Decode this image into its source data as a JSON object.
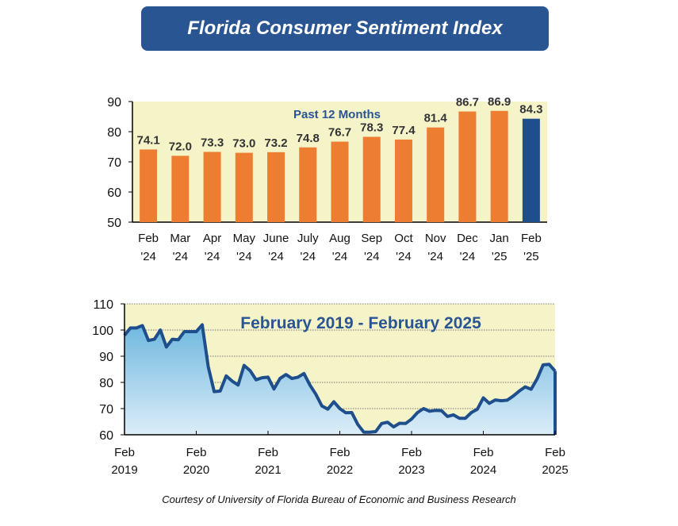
{
  "title": "Florida Consumer Sentiment Index",
  "credit": "Courtesy of University of Florida Bureau of Economic and Business Research",
  "colors": {
    "banner": "#2A5593",
    "bar": "#ED7D31",
    "bar_highlight": "#1F4E8C",
    "plot_bg": "#F5F3C8",
    "line": "#1F4E8C"
  },
  "chart_data": [
    {
      "type": "bar",
      "title": "Past 12 Months",
      "categories": [
        [
          "Feb",
          "'24"
        ],
        [
          "Mar",
          "'24"
        ],
        [
          "Apr",
          "'24"
        ],
        [
          "May",
          "'24"
        ],
        [
          "June",
          "'24"
        ],
        [
          "July",
          "'24"
        ],
        [
          "Aug",
          "'24"
        ],
        [
          "Sep",
          "'24"
        ],
        [
          "Oct",
          "'24"
        ],
        [
          "Nov",
          "'24"
        ],
        [
          "Dec",
          "'24"
        ],
        [
          "Jan",
          "'25"
        ],
        [
          "Feb",
          "'25"
        ]
      ],
      "values": [
        74.1,
        72.0,
        73.3,
        73.0,
        73.2,
        74.8,
        76.7,
        78.3,
        77.4,
        81.4,
        86.7,
        86.9,
        84.3
      ],
      "labels": [
        "74.1",
        "72.0",
        "73.3",
        "73.0",
        "73.2",
        "74.8",
        "76.7",
        "78.3",
        "77.4",
        "81.4",
        "86.7",
        "86.9",
        "84.3"
      ],
      "ylim": [
        50,
        90
      ],
      "yticks": [
        "50",
        "60",
        "70",
        "80",
        "90"
      ],
      "highlight_last": true
    },
    {
      "type": "area",
      "title": "February 2019 - February 2025",
      "start": "Feb 2019",
      "frequency": "monthly",
      "values": [
        98,
        100.8,
        100.8,
        101.7,
        96,
        96.5,
        100,
        93.5,
        96.5,
        96.3,
        99.4,
        99.4,
        99.4,
        102,
        86,
        76.5,
        76.7,
        82.5,
        80.5,
        79,
        86.5,
        84.5,
        81,
        81.8,
        82,
        77.5,
        81.5,
        83,
        81.5,
        82,
        83.4,
        79,
        75.5,
        71,
        69.8,
        72.6,
        70,
        68.4,
        68.5,
        64,
        61,
        61,
        61.2,
        64.3,
        64.8,
        63,
        64.4,
        64.3,
        66,
        68.5,
        70,
        69,
        69.3,
        69.2,
        67,
        67.6,
        66.3,
        66.3,
        68.5,
        69.8,
        74.1,
        72.0,
        73.3,
        73.0,
        73.2,
        74.8,
        76.7,
        78.3,
        77.4,
        81.4,
        86.7,
        86.9,
        84.3
      ],
      "ylim": [
        60,
        110
      ],
      "yticks": [
        "60",
        "70",
        "80",
        "90",
        "100",
        "110"
      ],
      "xticks": [
        [
          "Feb",
          "2019"
        ],
        [
          "Feb",
          "2020"
        ],
        [
          "Feb",
          "2021"
        ],
        [
          "Feb",
          "2022"
        ],
        [
          "Feb",
          "2023"
        ],
        [
          "Feb",
          "2024"
        ],
        [
          "Feb",
          "2025"
        ]
      ]
    }
  ]
}
